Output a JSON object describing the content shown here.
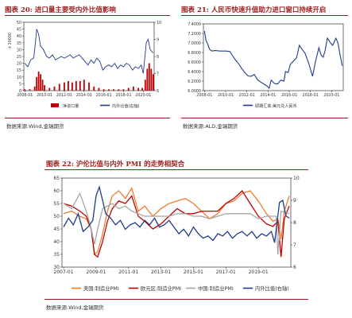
{
  "figures": [
    {
      "label": "图表 20:",
      "title": "进口量主要受内外比值影响",
      "source": "数据来源:Wind,金瑞期货"
    },
    {
      "label": "图表 21:",
      "title": "人民币快速升值助力进口窗口持续开启",
      "source": "数据来源:ALD,金瑞期货"
    },
    {
      "label": "图表 22:",
      "title": "沪伦比值与内外 PMI 的走势相契合",
      "source": "数据来源:Wind,金瑞期货"
    }
  ],
  "chart_data": [
    {
      "type": "bar",
      "ylabel": "x 10000",
      "ylim": [
        0,
        50
      ],
      "yticks": [
        0,
        5,
        10,
        15,
        20,
        25,
        30,
        35,
        40,
        45,
        50
      ],
      "y2lim": [
        6,
        10
      ],
      "y2ticks": [
        6,
        7,
        8,
        9,
        10
      ],
      "xticks": [
        "2008-01",
        "2010-01",
        "2012-01",
        "2014-01",
        "2016-01",
        "2018-01",
        "2020-01"
      ],
      "series": [
        {
          "name": "净进口量",
          "type": "bar",
          "color": "#c00000",
          "x": [
            2008.0,
            2008.5,
            2009.0,
            2009.2,
            2009.4,
            2009.6,
            2009.8,
            2010.0,
            2010.5,
            2011.0,
            2011.5,
            2012.0,
            2012.4,
            2012.8,
            2013.2,
            2013.6,
            2014.0,
            2014.5,
            2015.0,
            2015.5,
            2016.0,
            2016.5,
            2017.0,
            2017.5,
            2018.0,
            2018.5,
            2019.0,
            2019.5,
            2019.9,
            2020.2,
            2020.4,
            2020.6,
            2020.8,
            2021.0
          ],
          "values": [
            1,
            1,
            3,
            10,
            14,
            12,
            8,
            4,
            2,
            3,
            5,
            6,
            7,
            6,
            7,
            7,
            8,
            6,
            3,
            2,
            1,
            1,
            1,
            1,
            1,
            2,
            3,
            2,
            2,
            8,
            16,
            20,
            16,
            12
          ]
        },
        {
          "name": "内外比值(右轴)",
          "type": "line",
          "color": "#1f3b8c",
          "x": [
            2008.0,
            2008.3,
            2008.6,
            2008.9,
            2009.0,
            2009.2,
            2009.4,
            2009.6,
            2009.9,
            2010.2,
            2010.5,
            2010.8,
            2011.1,
            2011.4,
            2011.7,
            2012.0,
            2012.3,
            2012.6,
            2012.9,
            2013.2,
            2013.5,
            2013.8,
            2014.1,
            2014.4,
            2014.7,
            2015.0,
            2015.3,
            2015.6,
            2015.9,
            2016.2,
            2016.5,
            2016.8,
            2017.1,
            2017.4,
            2017.7,
            2018.0,
            2018.3,
            2018.6,
            2018.9,
            2019.2,
            2019.5,
            2019.8,
            2020.0,
            2020.3,
            2020.5,
            2020.7,
            2021.0
          ],
          "values": [
            7.6,
            7.4,
            7.8,
            7.9,
            8.4,
            9.6,
            9.3,
            8.6,
            8.4,
            8.0,
            7.9,
            8.1,
            7.8,
            7.9,
            8.0,
            7.9,
            8.0,
            8.1,
            7.9,
            8.0,
            8.1,
            7.9,
            7.7,
            7.5,
            7.8,
            7.6,
            7.9,
            7.7,
            7.2,
            7.4,
            7.5,
            7.4,
            7.6,
            7.3,
            7.5,
            7.4,
            7.6,
            7.5,
            7.2,
            7.4,
            7.3,
            7.5,
            7.0,
            8.8,
            9.0,
            8.4,
            8.2
          ]
        }
      ],
      "legend": "bottom"
    },
    {
      "type": "line",
      "ylim": [
        6.0,
        7.4
      ],
      "yticks": [
        "6.0000",
        "6.2000",
        "6.4000",
        "6.6000",
        "6.8000",
        "7.0000",
        "7.2000",
        "7.4000"
      ],
      "xticks": [
        "2008-01",
        "2010-01",
        "2012-01",
        "2014-01",
        "2016-01",
        "2018-01",
        "2020-01"
      ],
      "series": [
        {
          "name": "即期汇率:美元兑人民币",
          "color": "#1f3b8c",
          "x": [
            2008.0,
            2008.15,
            2008.3,
            2008.5,
            2008.7,
            2009.0,
            2009.5,
            2010.0,
            2010.4,
            2010.6,
            2010.9,
            2011.2,
            2011.5,
            2011.8,
            2012.1,
            2012.4,
            2012.7,
            2013.0,
            2013.3,
            2013.6,
            2013.9,
            2014.1,
            2014.3,
            2014.6,
            2014.9,
            2015.2,
            2015.5,
            2015.65,
            2015.9,
            2016.1,
            2016.4,
            2016.7,
            2016.95,
            2017.2,
            2017.5,
            2017.8,
            2018.0,
            2018.2,
            2018.5,
            2018.8,
            2019.0,
            2019.2,
            2019.4,
            2019.6,
            2019.9,
            2020.1,
            2020.4,
            2020.6,
            2020.8,
            2021.0
          ],
          "values": [
            7.25,
            7.05,
            6.98,
            6.86,
            6.83,
            6.84,
            6.83,
            6.83,
            6.82,
            6.75,
            6.65,
            6.57,
            6.47,
            6.38,
            6.31,
            6.3,
            6.34,
            6.23,
            6.18,
            6.14,
            6.1,
            6.05,
            6.22,
            6.15,
            6.14,
            6.22,
            6.2,
            6.4,
            6.38,
            6.55,
            6.62,
            6.69,
            6.95,
            6.87,
            6.78,
            6.6,
            6.45,
            6.3,
            6.63,
            6.9,
            6.75,
            6.7,
            6.85,
            7.1,
            7.0,
            6.95,
            7.1,
            7.0,
            6.75,
            6.52
          ]
        }
      ],
      "legend": "bottom"
    },
    {
      "type": "line",
      "ylim": [
        30,
        65
      ],
      "yticks": [
        30,
        35,
        40,
        45,
        50,
        55,
        60,
        65
      ],
      "y2lim": [
        6,
        10
      ],
      "y2ticks": [
        6,
        7,
        8,
        9,
        10
      ],
      "xticks": [
        "2007-01",
        "2009-01",
        "2011-01",
        "2013-01",
        "2015-01",
        "2017-01",
        "2019-01"
      ],
      "series": [
        {
          "name": "美国:制造业PMI",
          "color": "#ed7d31",
          "axis": "left",
          "x": [
            2007.0,
            2007.5,
            2008.0,
            2008.4,
            2008.7,
            2008.9,
            2009.1,
            2009.4,
            2009.7,
            2010.0,
            2010.4,
            2010.8,
            2011.2,
            2011.6,
            2012.0,
            2012.5,
            2013.0,
            2013.5,
            2014.0,
            2014.5,
            2015.0,
            2015.5,
            2016.0,
            2016.5,
            2017.0,
            2017.5,
            2018.0,
            2018.5,
            2019.0,
            2019.5,
            2019.9,
            2020.2,
            2020.4,
            2020.6,
            2020.9
          ],
          "values": [
            51,
            52,
            50,
            49,
            45,
            35,
            36,
            43,
            52,
            58,
            60,
            57,
            61,
            52,
            54,
            50,
            53,
            55,
            56,
            57,
            55,
            52,
            49,
            51,
            55,
            56,
            59,
            60,
            56,
            51,
            48,
            49,
            41,
            52,
            58
          ]
        },
        {
          "name": "欧元区:制造业PMI",
          "color": "#c00000",
          "axis": "left",
          "x": [
            2007.0,
            2007.5,
            2008.0,
            2008.4,
            2008.7,
            2008.9,
            2009.1,
            2009.4,
            2009.7,
            2010.0,
            2010.4,
            2010.8,
            2011.2,
            2011.6,
            2012.0,
            2012.5,
            2013.0,
            2013.5,
            2014.0,
            2014.5,
            2015.0,
            2015.5,
            2016.0,
            2016.5,
            2017.0,
            2017.5,
            2018.0,
            2018.5,
            2019.0,
            2019.5,
            2019.9,
            2020.2,
            2020.4,
            2020.6,
            2020.9
          ],
          "values": [
            55,
            54,
            52,
            50,
            45,
            35,
            34,
            40,
            48,
            53,
            56,
            55,
            58,
            50,
            48,
            45,
            47,
            50,
            53,
            51,
            51,
            52,
            52,
            52,
            55,
            57,
            60,
            55,
            50,
            47,
            46,
            48,
            34,
            49,
            54
          ]
        },
        {
          "name": "中国:制造业PMI",
          "color": "#a6a6a6",
          "axis": "left",
          "x": [
            2007.0,
            2007.5,
            2008.0,
            2008.4,
            2008.7,
            2008.9,
            2009.1,
            2009.4,
            2009.7,
            2010.0,
            2010.4,
            2010.8,
            2011.2,
            2011.6,
            2012.0,
            2012.5,
            2013.0,
            2013.5,
            2014.0,
            2014.5,
            2015.0,
            2015.5,
            2016.0,
            2016.5,
            2017.0,
            2017.5,
            2018.0,
            2018.5,
            2019.0,
            2019.5,
            2019.9,
            2020.1,
            2020.2,
            2020.4,
            2020.9
          ],
          "values": [
            55,
            53,
            59,
            52,
            45,
            39,
            45,
            53,
            54,
            55,
            53,
            54,
            52,
            51,
            50,
            50,
            50,
            50,
            51,
            51,
            50,
            50,
            49,
            50,
            51,
            51,
            51,
            51,
            49,
            50,
            50,
            50,
            35,
            52,
            51
          ]
        },
        {
          "name": "内外比值(右轴)",
          "color": "#1f3b8c",
          "axis": "right",
          "x": [
            2007.0,
            2007.3,
            2007.6,
            2007.9,
            2008.2,
            2008.5,
            2008.8,
            2009.0,
            2009.2,
            2009.4,
            2009.6,
            2009.9,
            2010.2,
            2010.5,
            2010.8,
            2011.1,
            2011.4,
            2011.7,
            2012.0,
            2012.3,
            2012.6,
            2012.9,
            2013.2,
            2013.5,
            2013.8,
            2014.1,
            2014.4,
            2014.7,
            2015.0,
            2015.3,
            2015.6,
            2015.9,
            2016.2,
            2016.5,
            2016.8,
            2017.1,
            2017.4,
            2017.7,
            2018.0,
            2018.3,
            2018.6,
            2018.9,
            2019.2,
            2019.5,
            2019.8,
            2020.0,
            2020.3,
            2020.5,
            2020.7,
            2020.9
          ],
          "values": [
            7.8,
            8.2,
            7.9,
            8.4,
            7.6,
            7.8,
            8.1,
            9.2,
            9.6,
            9.0,
            8.4,
            8.2,
            7.9,
            8.1,
            7.7,
            7.9,
            8.0,
            7.8,
            8.1,
            7.9,
            8.2,
            7.8,
            7.9,
            8.1,
            7.8,
            7.5,
            7.7,
            7.4,
            7.8,
            7.5,
            7.3,
            7.4,
            7.2,
            7.5,
            7.4,
            7.6,
            7.3,
            7.5,
            7.6,
            7.4,
            7.6,
            7.3,
            7.5,
            7.4,
            7.6,
            7.1,
            8.9,
            9.0,
            8.3,
            8.2
          ]
        }
      ],
      "legend": "bottom"
    }
  ]
}
